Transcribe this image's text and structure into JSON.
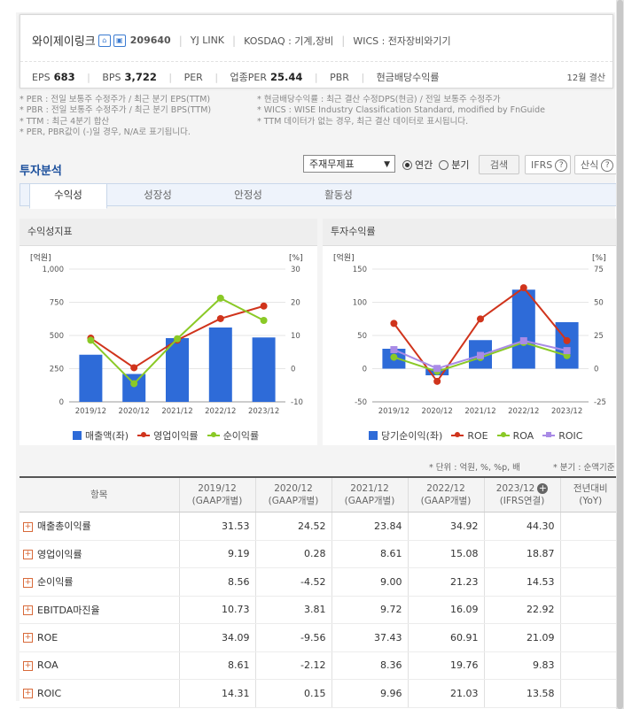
{
  "company": {
    "name": "와이제이링크",
    "icon1": "home-icon",
    "icon2": "building-icon",
    "code": "209640",
    "eng_name": "YJ LINK",
    "market": "KOSDAQ : 기계,장비",
    "wics": "WICS : 전자장비와기기"
  },
  "metrics": {
    "eps_label": "EPS",
    "eps": "683",
    "bps_label": "BPS",
    "bps": "3,722",
    "per_label": "PER",
    "ind_per_label": "업종PER",
    "ind_per": "25.44",
    "pbr_label": "PBR",
    "div_label": "현금배당수익률",
    "settlement": "12월 결산"
  },
  "notes": {
    "left": [
      "* PER : 전일 보통주 수정주가 / 최근 분기 EPS(TTM)",
      "* PBR : 전일 보통주 수정주가 / 최근 분기 BPS(TTM)",
      "* TTM : 최근 4분기 합산",
      "* PER, PBR값이 (-)일 경우, N/A로 표기됩니다."
    ],
    "right": [
      "* 현금배당수익률 : 최근 결산 수정DPS(현금) / 전일 보통주 수정주가",
      "* WICS : WISE Industry Classification Standard, modified by FnGuide",
      "* TTM 데이터가 없는 경우, 최근 결산 데이터로 표시됩니다."
    ]
  },
  "analysis": {
    "title": "투자분석",
    "select_value": "주재무제표",
    "radio_annual": "연간",
    "radio_quarter": "분기",
    "search_btn": "검색",
    "ifrs_btn": "IFRS",
    "formula_btn": "산식",
    "help_icon": "question-icon"
  },
  "tabs": [
    "수익성",
    "성장성",
    "안정성",
    "활동성"
  ],
  "panels": {
    "left_title": "수익성지표",
    "right_title": "투자수익률",
    "left_legend": [
      "매출액(좌)",
      "영업이익률",
      "순이익률"
    ],
    "right_legend": [
      "당기순이익(좌)",
      "ROE",
      "ROA",
      "ROIC"
    ]
  },
  "colors": {
    "bar": "#2e6bd8",
    "red": "#d0341c",
    "green": "#8ac926",
    "purple": "#a98be6",
    "accent_title": "#1b4f9c"
  },
  "chart_data": [
    {
      "type": "bar",
      "title": "수익성지표",
      "categories": [
        "2019/12",
        "2020/12",
        "2021/12",
        "2022/12",
        "2023/12"
      ],
      "left_unit": "[억원]",
      "right_unit": "[%]",
      "ylim_left": [
        0,
        1000
      ],
      "yticks_left": [
        "0",
        "250",
        "500",
        "750",
        "1,000"
      ],
      "ylim_right": [
        -10,
        30
      ],
      "yticks_right": [
        "-10",
        "0",
        "10",
        "20",
        "30"
      ],
      "series": [
        {
          "name": "매출액(좌)",
          "kind": "bar",
          "axis": "left",
          "values": [
            355,
            210,
            480,
            560,
            485
          ]
        },
        {
          "name": "영업이익률",
          "kind": "line",
          "axis": "right",
          "values": [
            9.19,
            0.28,
            8.61,
            15.08,
            18.87
          ]
        },
        {
          "name": "순이익률",
          "kind": "line",
          "axis": "right",
          "values": [
            8.56,
            -4.52,
            9.0,
            21.23,
            14.53
          ]
        }
      ]
    },
    {
      "type": "bar",
      "title": "투자수익률",
      "categories": [
        "2019/12",
        "2020/12",
        "2021/12",
        "2022/12",
        "2023/12"
      ],
      "left_unit": "[억원]",
      "right_unit": "[%]",
      "ylim_left": [
        -50,
        150
      ],
      "yticks_left": [
        "-50",
        "0",
        "50",
        "100",
        "150"
      ],
      "ylim_right": [
        -25,
        75
      ],
      "yticks_right": [
        "-25",
        "0",
        "25",
        "50",
        "75"
      ],
      "series": [
        {
          "name": "당기순이익(좌)",
          "kind": "bar",
          "axis": "left",
          "values": [
            30,
            -10,
            43,
            119,
            70
          ]
        },
        {
          "name": "ROE",
          "kind": "line",
          "axis": "right",
          "values": [
            34.09,
            -9.56,
            37.43,
            60.91,
            21.09
          ]
        },
        {
          "name": "ROA",
          "kind": "line",
          "axis": "right",
          "values": [
            8.61,
            -2.12,
            8.36,
            19.76,
            9.83
          ]
        },
        {
          "name": "ROIC",
          "kind": "line",
          "axis": "right",
          "values": [
            14.31,
            0.15,
            9.96,
            21.03,
            13.58
          ]
        }
      ]
    }
  ],
  "unit_note_left": "* 단위 : 억원, %, %p, 배",
  "unit_note_right": "* 분기 : 순액기준",
  "table": {
    "headers": [
      {
        "line1": "항목",
        "line2": ""
      },
      {
        "line1": "2019/12",
        "line2": "(GAAP개별)"
      },
      {
        "line1": "2020/12",
        "line2": "(GAAP개별)"
      },
      {
        "line1": "2021/12",
        "line2": "(GAAP개별)"
      },
      {
        "line1": "2022/12",
        "line2": "(GAAP개별)"
      },
      {
        "line1": "2023/12",
        "line2": "(IFRS연결)"
      },
      {
        "line1": "전년대비",
        "line2": "(YoY)"
      }
    ],
    "rows": [
      {
        "label": "매출총이익률",
        "values": [
          "31.53",
          "24.52",
          "23.84",
          "34.92",
          "44.30",
          ""
        ]
      },
      {
        "label": "영업이익률",
        "values": [
          "9.19",
          "0.28",
          "8.61",
          "15.08",
          "18.87",
          ""
        ]
      },
      {
        "label": "순이익률",
        "values": [
          "8.56",
          "-4.52",
          "9.00",
          "21.23",
          "14.53",
          ""
        ]
      },
      {
        "label": "EBITDA마진율",
        "values": [
          "10.73",
          "3.81",
          "9.72",
          "16.09",
          "22.92",
          ""
        ]
      },
      {
        "label": "ROE",
        "values": [
          "34.09",
          "-9.56",
          "37.43",
          "60.91",
          "21.09",
          ""
        ]
      },
      {
        "label": "ROA",
        "values": [
          "8.61",
          "-2.12",
          "8.36",
          "19.76",
          "9.83",
          ""
        ]
      },
      {
        "label": "ROIC",
        "values": [
          "14.31",
          "0.15",
          "9.96",
          "21.03",
          "13.58",
          ""
        ]
      }
    ]
  }
}
